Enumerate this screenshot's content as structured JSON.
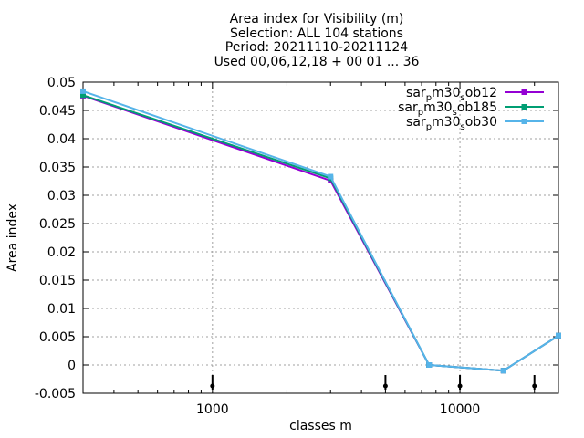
{
  "chart_data": {
    "type": "line",
    "title_lines": [
      "Area index  for Visibility (m)",
      "Selection: ALL    104 stations",
      "Period: 20211110-20211124",
      "Used 00,06,12,18 + 00 01 ... 36"
    ],
    "xlabel": "classes m",
    "ylabel": "Area index",
    "x_scale": "log",
    "xlim": [
      300,
      25000
    ],
    "ylim": [
      -0.005,
      0.05
    ],
    "x_ticks": [
      {
        "value": 1000,
        "label": "1000"
      },
      {
        "value": 10000,
        "label": "10000"
      }
    ],
    "y_ticks": [
      {
        "value": -0.005,
        "label": "-0.005"
      },
      {
        "value": 0,
        "label": "0"
      },
      {
        "value": 0.005,
        "label": "0.005"
      },
      {
        "value": 0.01,
        "label": "0.01"
      },
      {
        "value": 0.015,
        "label": "0.015"
      },
      {
        "value": 0.02,
        "label": "0.02"
      },
      {
        "value": 0.025,
        "label": "0.025"
      },
      {
        "value": 0.03,
        "label": "0.03"
      },
      {
        "value": 0.035,
        "label": "0.035"
      },
      {
        "value": 0.04,
        "label": "0.04"
      },
      {
        "value": 0.045,
        "label": "0.045"
      },
      {
        "value": 0.05,
        "label": "0.05"
      }
    ],
    "grid": true,
    "legend_position": "top-right",
    "markers_x": [
      1000,
      5000,
      10000,
      20000
    ],
    "series": [
      {
        "name_main": "sar",
        "name_sub1": "p",
        "name_mid": "m30",
        "name_sub2": "s",
        "name_end": "ob12",
        "color": "#9400d3",
        "x": [
          300,
          3000,
          7500,
          15000,
          25000
        ],
        "y": [
          0.0476,
          0.0326,
          0.0,
          -0.001,
          0.0052
        ]
      },
      {
        "name_main": "sar",
        "name_sub1": "p",
        "name_mid": "m30",
        "name_sub2": "s",
        "name_end": "ob185",
        "color": "#009e73",
        "x": [
          300,
          3000,
          7500,
          15000,
          25000
        ],
        "y": [
          0.0477,
          0.033,
          0.0,
          -0.001,
          0.0052
        ]
      },
      {
        "name_main": "sar",
        "name_sub1": "p",
        "name_mid": "m30",
        "name_sub2": "s",
        "name_end": "ob30",
        "color": "#56b4e9",
        "x": [
          300,
          3000,
          7500,
          15000,
          25000
        ],
        "y": [
          0.0484,
          0.0333,
          0.0,
          -0.001,
          0.0052
        ]
      }
    ]
  }
}
